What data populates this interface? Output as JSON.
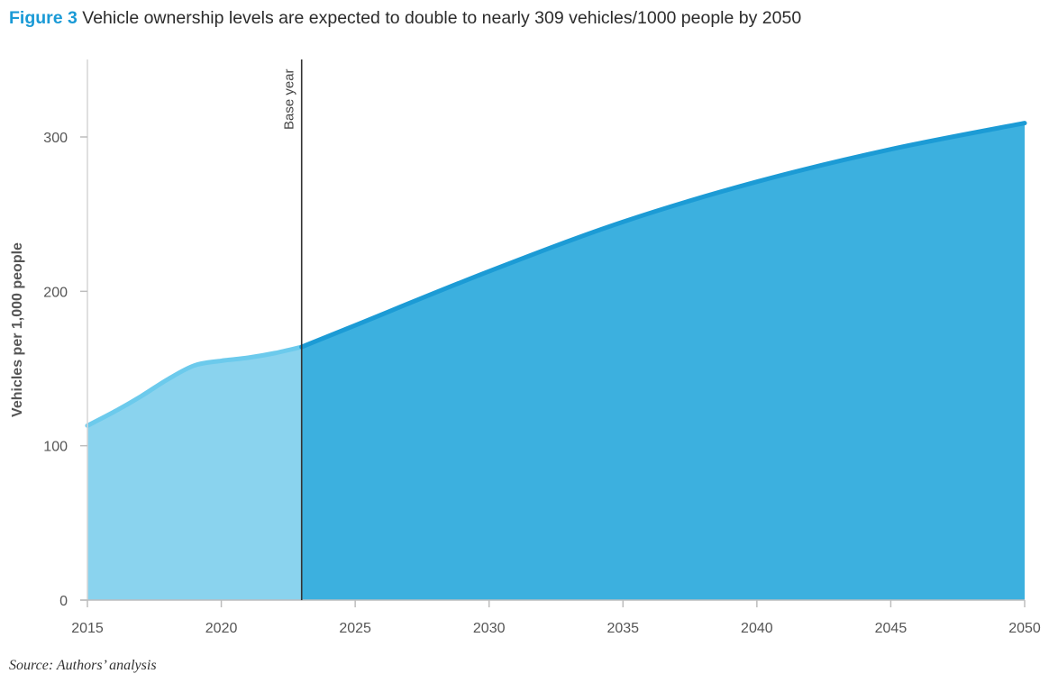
{
  "title": {
    "prefix": "Figure 3",
    "text": "Vehicle ownership levels are expected to double to nearly 309 vehicles/1000 people by 2050"
  },
  "source": "Source: Authors’ analysis",
  "chart_data": {
    "type": "area",
    "title": "Vehicle ownership levels are expected to double to nearly 309 vehicles/1000 people by 2050",
    "xlabel": "",
    "ylabel": "Vehicles per 1,000 people",
    "xlim": [
      2015,
      2050
    ],
    "ylim": [
      0,
      350
    ],
    "xticks": [
      2015,
      2020,
      2025,
      2030,
      2035,
      2040,
      2045,
      2050
    ],
    "yticks": [
      0,
      100,
      200,
      300
    ],
    "grid": false,
    "annotation": {
      "label": "Base year",
      "x": 2023
    },
    "series": [
      {
        "segment": "historical",
        "color": "#8ad3ee",
        "line_color": "#6ccaec",
        "x": [
          2015,
          2016,
          2017,
          2018,
          2019,
          2020,
          2021,
          2022,
          2023
        ],
        "y": [
          113,
          122,
          132,
          143,
          152,
          155,
          157,
          160,
          164
        ]
      },
      {
        "segment": "projected",
        "color": "#3cb0df",
        "line_color": "#1c9bd5",
        "x": [
          2023,
          2025,
          2030,
          2035,
          2040,
          2045,
          2050
        ],
        "y": [
          164,
          178,
          213,
          245,
          271,
          292,
          309
        ]
      }
    ]
  }
}
